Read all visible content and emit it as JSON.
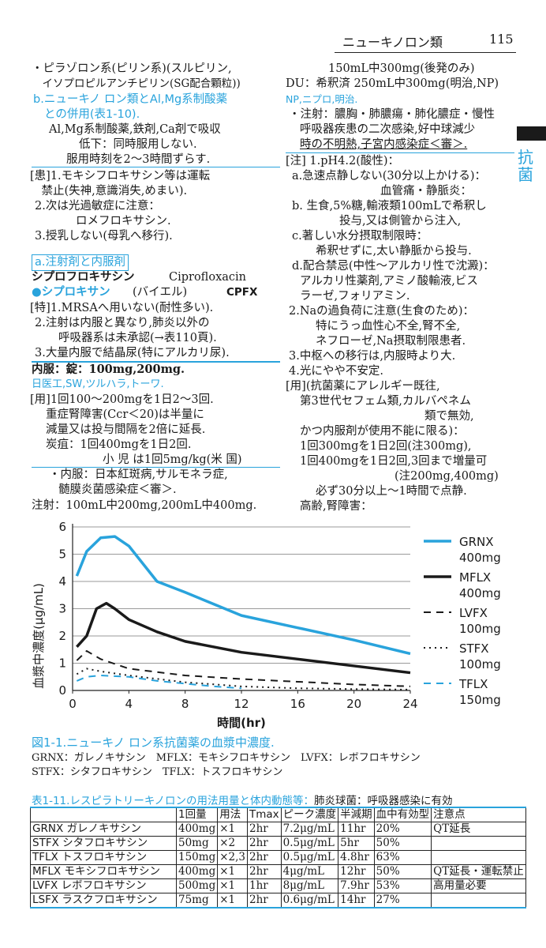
{
  "header": {
    "title": "ニューキノロン類",
    "page": "115"
  },
  "side_tab": {
    "label": "抗菌"
  },
  "left_col": {
    "top_lines": [
      "・ピラゾロン系(ピリン系)(スルピリン,",
      "　イソプロピルアンチピリン(SG配合顆粒))"
    ],
    "b_heading": [
      "b.ニューキノ ロン類とAl,Mg系制酸薬",
      "との併用(表1-10)."
    ],
    "b_lines": [
      "Al,Mg系制酸薬,鉄剤,Ca剤で吸収",
      "低下：同時服用しない.",
      "服用時刻を2〜3時間ずらす."
    ],
    "caution_lines": [
      "[患]1.モキシフロキサシン等は運転",
      "　禁止(失神,意識消失,めまい).",
      "2.次は光過敏症に注意：",
      "ロメフロキサシン.",
      "3.授乳しない(母乳へ移行)."
    ],
    "section_a": "a.注射剤と内服剤",
    "drug_name": "シプロフロキサシン",
    "drug_latin": "Ciprofloxacin",
    "brand": "●シプロキサン",
    "brand_maker": "(バイエル)",
    "brand_code": "CPFX",
    "special_lines": [
      "[特]1.MRSAへ用いない(耐性多い).",
      "2.注射は内服と異なり,肺炎以外の",
      "呼吸器系は未承認(→表110頁).",
      "3.大量内服で結晶尿(特にアルカリ尿)."
    ],
    "oral_form": "内服：錠：100mg,200mg.",
    "generics": "日医工,SW,ツルハラ,トーワ.",
    "usage_lines": [
      "[用]1回100〜200mgを1日2〜3回.",
      "重症腎障害(Ccr＜20)は半量に",
      "減量又は投与間隔を2倍に延長.",
      "炭疽：1回400mgを1日2回.",
      "小 児 は1回5mg/kg(米 国)",
      "・内服：日本紅斑病,サルモネラ症,",
      "髄膜炎菌感染症＜審＞."
    ],
    "injection": "注射：100mL中200mg,200mL中400mg."
  },
  "right_col": {
    "lines1": [
      "150mL中300mg(後発のみ)",
      "DU：希釈済 250mL中300mg(明治,NP)"
    ],
    "np_line": "NP,ニプロ,明治.",
    "inject_lines": [
      "・注射：膿胸・肺膿瘍・肺化膿症・慢性",
      "呼吸器疾患の二次感染,好中球減少",
      "時の不明熱,子宮内感染症＜審＞."
    ],
    "note_lines": [
      "[注] 1.pH4.2(酸性)：",
      "a.急速点静しない(30分以上かける)：",
      "血管痛・静脈炎：",
      "b. 生食,5%糖,輸液類100mLで希釈し",
      "投与,又は側管から注入,",
      "c.著しい水分摂取制限時：",
      "希釈せずに,太い静脈から投与.",
      "d.配合禁忌(中性〜アルカリ性で沈澱)：",
      "アルカリ性薬剤,アミノ酸輸液,ビス",
      "ラーゼ,フォリアミン.",
      "2.Naの過負荷に注意(生食のため)：",
      "特にうっ血性心不全,腎不全,",
      "ネフローゼ,Na摂取制限患者.",
      "3.中枢への移行は,内服時より大.",
      "4.光にやや不安定."
    ],
    "usage_lines": [
      "[用](抗菌薬にアレルギー既往,",
      "第3世代セフェム類,カルバペネム",
      "類で無効,",
      "かつ内服剤が使用不能に限る)：",
      "1回300mgを1日2回(注300mg),",
      "1回400mgを1日2回,3回まで増量可",
      "(注200mg,400mg)",
      "必ず30分以上〜1時間で点静.",
      "高齢,腎障害："
    ]
  },
  "chart_data": {
    "type": "line",
    "title": "",
    "xlabel": "時間(hr)",
    "ylabel": "血漿中濃度(μg/mL)",
    "xlim": [
      0,
      24
    ],
    "ylim": [
      0,
      6
    ],
    "xticks": [
      0,
      4,
      8,
      12,
      16,
      20,
      24
    ],
    "yticks": [
      0,
      1,
      2,
      3,
      4,
      5,
      6
    ],
    "grid": "horizontal",
    "legend_position": "right",
    "series": [
      {
        "name": "GRNX",
        "name2": "400mg",
        "color": "#29a3dc",
        "style": "solid",
        "x": [
          0.3,
          1,
          2,
          3,
          4,
          6,
          8,
          12,
          16,
          20,
          24
        ],
        "y": [
          4.2,
          5.1,
          5.6,
          5.65,
          5.3,
          4.0,
          3.6,
          2.75,
          2.3,
          1.85,
          1.35
        ]
      },
      {
        "name": "MFLX",
        "name2": "400mg",
        "color": "#1a1a1a",
        "style": "solid",
        "x": [
          0.3,
          1,
          1.7,
          2.4,
          3,
          4,
          6,
          8,
          12,
          16,
          20,
          24
        ],
        "y": [
          1.6,
          2.0,
          3.0,
          3.2,
          3.0,
          2.6,
          2.15,
          1.8,
          1.4,
          1.15,
          0.9,
          0.65
        ]
      },
      {
        "name": "LVFX",
        "name2": "100mg",
        "color": "#1a1a1a",
        "style": "dashed",
        "x": [
          0.3,
          1,
          2,
          4,
          8,
          12,
          16,
          20,
          24
        ],
        "y": [
          1.1,
          1.45,
          1.15,
          0.8,
          0.55,
          0.42,
          0.32,
          0.22,
          0.15
        ]
      },
      {
        "name": "STFX",
        "name2": "100mg",
        "color": "#1a1a1a",
        "style": "dotted",
        "x": [
          0.3,
          1,
          2,
          4,
          8,
          12,
          16,
          20,
          24
        ],
        "y": [
          0.6,
          0.8,
          0.7,
          0.55,
          0.3,
          0.15,
          0.08,
          0.05,
          0.03
        ]
      },
      {
        "name": "TFLX",
        "name2": "150mg",
        "color": "#29a3dc",
        "style": "dashed",
        "x": [
          0.3,
          1,
          2,
          4,
          6,
          8,
          10,
          12
        ],
        "y": [
          0.35,
          0.5,
          0.55,
          0.5,
          0.35,
          0.25,
          0.15,
          0.08
        ]
      }
    ]
  },
  "figure_caption": "図1-1.ニューキノ ロン系抗菌薬の血漿中濃度.",
  "figure_notes": [
    "GRNX：ガレノキサシン　MFLX：モキシフロキサシン　LVFX：レボフロキサシン",
    "STFX：シタフロキサシン　TFLX：トスフロキサシン"
  ],
  "table": {
    "title": "表1-11.レスピラトリーキノロンの用法用量と体内動態等：",
    "title_suffix": "肺炎球菌：呼吸器感染に有効",
    "headers": [
      "",
      "1回量",
      "用法",
      "Tmax",
      "ピーク濃度",
      "半減期",
      "血中有効型",
      "注意点"
    ],
    "rows": [
      [
        "GRNX ガレノキサシン",
        "400mg",
        "×1",
        "2hr",
        "7.2μg/mL",
        "11hr",
        "20%",
        "QT延長"
      ],
      [
        "STFX シタフロキサシン",
        "50mg",
        "×2",
        "2hr",
        "0.5μg/mL",
        "5hr",
        "50%",
        ""
      ],
      [
        "TFLX トスフロキサシン",
        "150mg",
        "×2,3",
        "2hr",
        "0.5μg/mL",
        "4.8hr",
        "63%",
        ""
      ],
      [
        "MFLX モキシフロキサシン",
        "400mg",
        "×1",
        "2hr",
        "4μg/mL",
        "12hr",
        "50%",
        "QT延長・運転禁止"
      ],
      [
        "LVFX レボフロキサシン",
        "500mg",
        "×1",
        "1hr",
        "8μg/mL",
        "7.9hr",
        "53%",
        "高用量必要"
      ],
      [
        "LSFX ラスクフロキサシン",
        "75mg",
        "×1",
        "2hr",
        "0.6μg/mL",
        "14hr",
        "27%",
        ""
      ]
    ]
  }
}
